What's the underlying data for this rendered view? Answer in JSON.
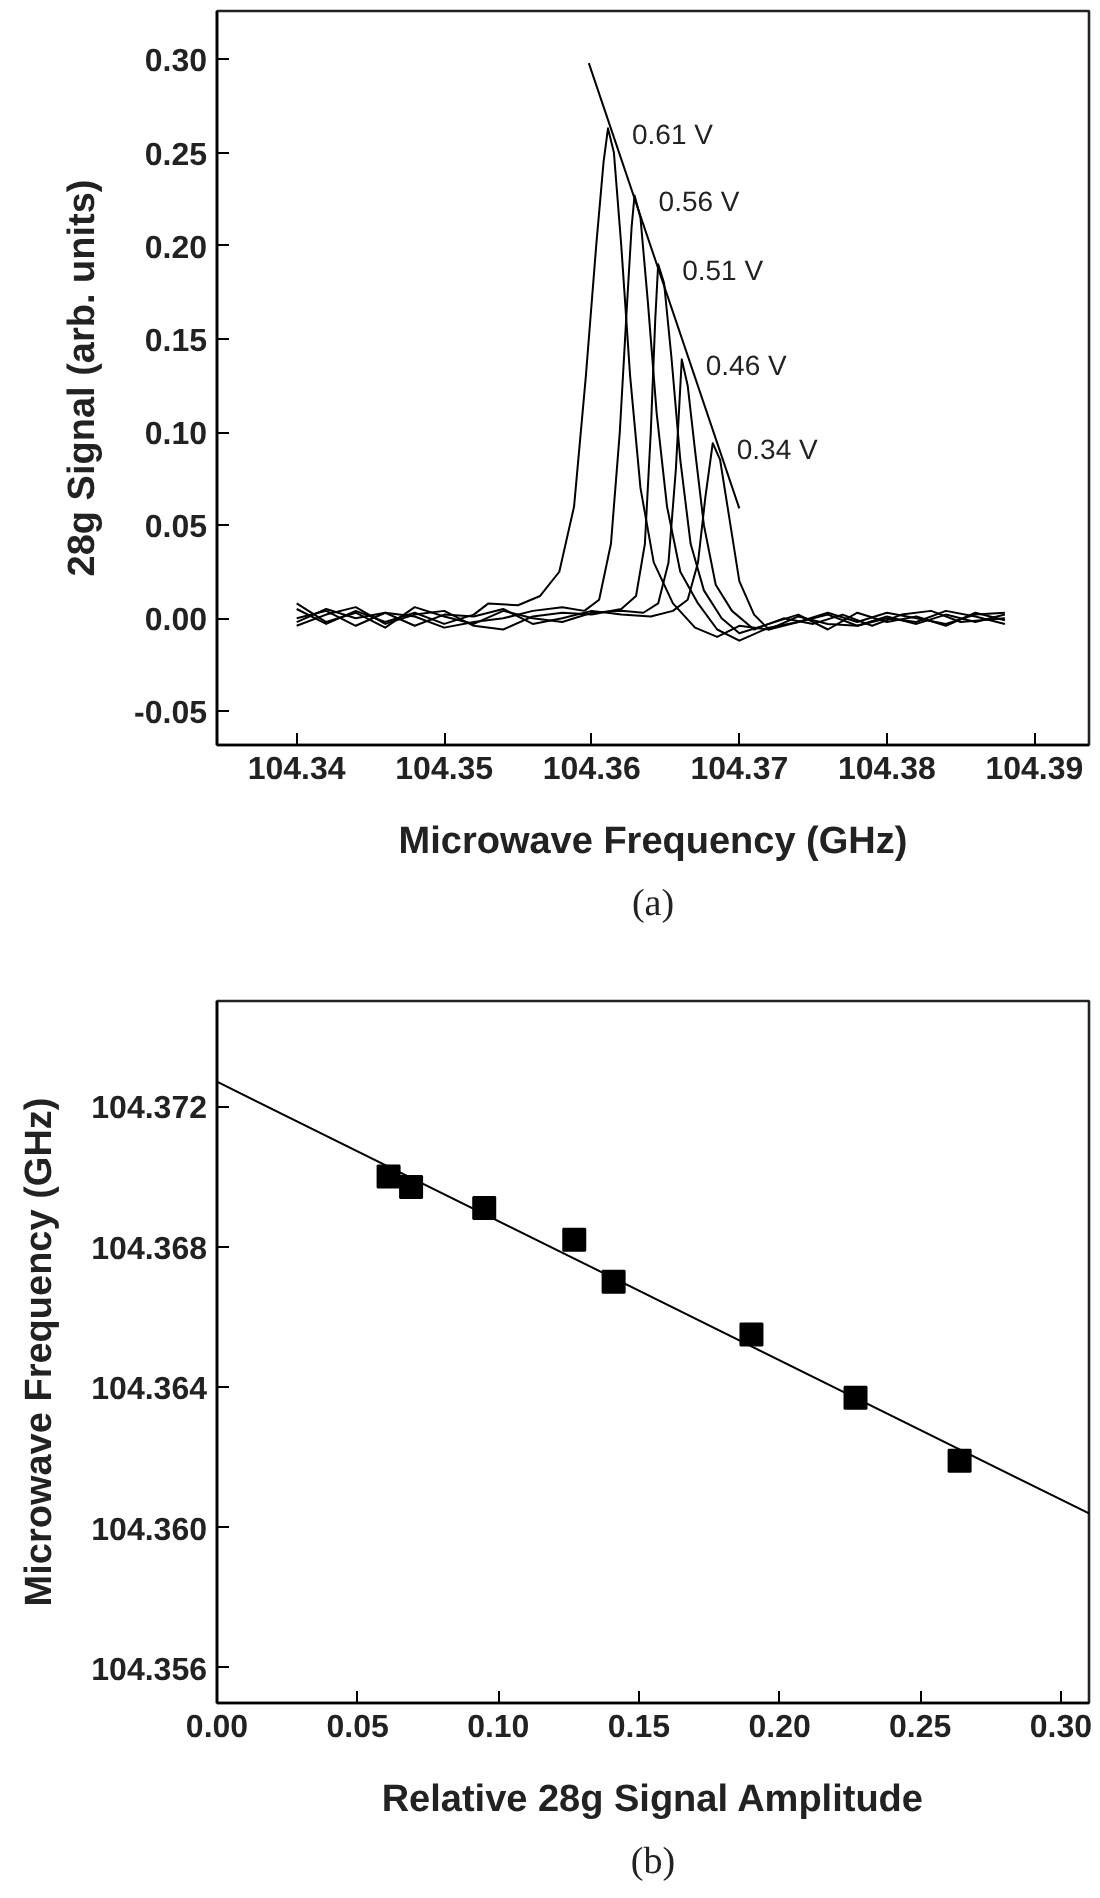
{
  "chart_data": [
    {
      "type": "line",
      "xlabel": "Microwave Frequency (GHz)",
      "ylabel": "28g Signal (arb. units)",
      "xlim": [
        104.3346,
        104.3937
      ],
      "ylim": [
        -0.068,
        0.326
      ],
      "xticks": [
        104.34,
        104.35,
        104.36,
        104.37,
        104.38,
        104.39
      ],
      "yticks": [
        {
          "value": -0.05,
          "label": "-0.05"
        },
        {
          "value": 0,
          "label": "0.00"
        },
        {
          "value": 0.05,
          "label": "0.05"
        },
        {
          "value": 0.1,
          "label": "0.10"
        },
        {
          "value": 0.15,
          "label": "0.15"
        },
        {
          "value": 0.2,
          "label": "0.20"
        },
        {
          "value": 0.25,
          "label": "0.25"
        },
        {
          "value": 0.3,
          "label": "0.30"
        }
      ],
      "series": [
        {
          "name": "0.61 V",
          "color": "#000000",
          "x": [
            104.34,
            104.342,
            104.344,
            104.346,
            104.348,
            104.35,
            104.352,
            104.353,
            104.355,
            104.3565,
            104.3578,
            104.3588,
            104.3596,
            104.3603,
            104.3608,
            104.3611,
            104.3615,
            104.362,
            104.3626,
            104.3633,
            104.3642,
            104.3655,
            104.367,
            104.3685,
            104.37,
            104.372,
            104.374,
            104.376,
            104.378,
            104.38,
            104.382,
            104.384,
            104.386,
            104.388
          ],
          "values": [
            0.005,
            -0.003,
            0.004,
            -0.002,
            0.003,
            -0.003,
            0.002,
            0.008,
            0.007,
            0.012,
            0.025,
            0.06,
            0.13,
            0.2,
            0.245,
            0.263,
            0.25,
            0.2,
            0.13,
            0.07,
            0.03,
            0.008,
            -0.005,
            -0.01,
            -0.004,
            -0.006,
            0.001,
            -0.003,
            -0.004,
            0.0,
            -0.002,
            0.004,
            0.001,
            -0.003
          ]
        },
        {
          "name": "0.56 V",
          "color": "#000000",
          "x": [
            104.34,
            104.342,
            104.344,
            104.346,
            104.348,
            104.35,
            104.352,
            104.354,
            104.356,
            104.358,
            104.3595,
            104.3605,
            104.3613,
            104.3619,
            104.3624,
            104.3627,
            104.3629,
            104.3633,
            104.3638,
            104.3644,
            104.3651,
            104.366,
            104.3672,
            104.3685,
            104.37,
            104.372,
            104.374,
            104.376,
            104.378,
            104.38,
            104.382,
            104.384,
            104.386,
            104.388
          ],
          "values": [
            0.0,
            0.004,
            -0.004,
            0.003,
            0.001,
            -0.005,
            -0.002,
            0.0,
            0.004,
            0.006,
            0.004,
            0.01,
            0.04,
            0.1,
            0.17,
            0.21,
            0.227,
            0.215,
            0.17,
            0.11,
            0.06,
            0.025,
            0.008,
            -0.006,
            -0.012,
            -0.005,
            -0.002,
            0.002,
            -0.004,
            0.001,
            -0.003,
            0.002,
            -0.002,
            0.002
          ]
        },
        {
          "name": "0.51 V",
          "color": "#000000",
          "x": [
            104.34,
            104.342,
            104.344,
            104.346,
            104.348,
            104.35,
            104.352,
            104.354,
            104.356,
            104.358,
            104.36,
            104.362,
            104.363,
            104.3636,
            104.364,
            104.3643,
            104.3645,
            104.3649,
            104.3654,
            104.366,
            104.3667,
            104.3676,
            104.3688,
            104.37,
            104.372,
            104.374,
            104.376,
            104.378,
            104.38,
            104.382,
            104.384,
            104.386,
            104.388
          ],
          "values": [
            -0.004,
            0.002,
            0.006,
            -0.003,
            0.002,
            0.004,
            -0.004,
            -0.006,
            0.001,
            0.003,
            0.002,
            0.005,
            0.012,
            0.04,
            0.1,
            0.16,
            0.19,
            0.18,
            0.14,
            0.085,
            0.04,
            0.015,
            0.0,
            -0.008,
            -0.003,
            0.002,
            -0.006,
            0.003,
            -0.002,
            0.001,
            -0.004,
            0.003,
            -0.001
          ]
        },
        {
          "name": "0.46 V",
          "color": "#000000",
          "x": [
            104.34,
            104.342,
            104.344,
            104.346,
            104.348,
            104.35,
            104.352,
            104.354,
            104.356,
            104.358,
            104.36,
            104.362,
            104.3635,
            104.3645,
            104.3652,
            104.3657,
            104.3661,
            104.3665,
            104.367,
            104.3676,
            104.3684,
            104.3695,
            104.371,
            104.373,
            104.375,
            104.377,
            104.379,
            104.381,
            104.383,
            104.385,
            104.388
          ],
          "values": [
            0.008,
            -0.002,
            0.003,
            -0.005,
            0.006,
            0.001,
            -0.003,
            0.004,
            0.0,
            -0.002,
            0.003,
            0.004,
            0.003,
            0.008,
            0.03,
            0.08,
            0.139,
            0.125,
            0.09,
            0.05,
            0.018,
            0.004,
            -0.006,
            0.0,
            -0.003,
            0.002,
            -0.004,
            0.002,
            0.004,
            -0.002,
            0.0
          ]
        },
        {
          "name": "0.34 V",
          "color": "#000000",
          "x": [
            104.34,
            104.342,
            104.344,
            104.346,
            104.348,
            104.35,
            104.352,
            104.354,
            104.356,
            104.358,
            104.36,
            104.362,
            104.364,
            104.3655,
            104.3665,
            104.3672,
            104.3677,
            104.3682,
            104.3687,
            104.3693,
            104.37,
            104.371,
            104.372,
            104.374,
            104.376,
            104.378,
            104.38,
            104.382,
            104.384,
            104.386,
            104.388
          ],
          "values": [
            -0.002,
            0.005,
            0.0,
            0.003,
            -0.004,
            0.002,
            0.001,
            0.005,
            -0.003,
            0.0,
            0.004,
            0.002,
            0.001,
            0.004,
            0.01,
            0.03,
            0.065,
            0.094,
            0.085,
            0.055,
            0.02,
            0.002,
            -0.006,
            -0.002,
            0.003,
            -0.002,
            0.003,
            0.0,
            -0.003,
            0.002,
            0.003
          ]
        },
        {
          "type": "line",
          "color": "#000000",
          "x": [
            104.3598,
            104.37
          ],
          "values": [
            0.298,
            0.059
          ]
        }
      ],
      "annotations": [
        "(a)"
      ]
    },
    {
      "type": "scatter",
      "xlabel": "Relative 28g Signal Amplitude",
      "ylabel": "Microwave Frequency (GHz)",
      "xlim": [
        0,
        0.31
      ],
      "ylim": [
        104.355,
        104.375
      ],
      "xticks": [
        {
          "value": 0,
          "label": "0.00"
        },
        {
          "value": 0.05,
          "label": "0.05"
        },
        {
          "value": 0.1,
          "label": "0.10"
        },
        {
          "value": 0.15,
          "label": "0.15"
        },
        {
          "value": 0.2,
          "label": "0.20"
        },
        {
          "value": 0.25,
          "label": "0.25"
        },
        {
          "value": 0.3,
          "label": "0.30"
        }
      ],
      "yticks": [
        104.356,
        {
          "value": 104.36,
          "label": "104.360"
        },
        104.364,
        104.368,
        104.372
      ],
      "series": [
        {
          "marker": "square",
          "color": "#000000",
          "x": [
            0.061,
            0.069,
            0.095,
            0.127,
            0.141,
            0.19,
            0.227,
            0.264
          ],
          "values": [
            104.37,
            104.3697,
            104.3691,
            104.3682,
            104.367,
            104.3655,
            104.3637,
            104.3619
          ]
        },
        {
          "type": "line",
          "color": "#000000",
          "x": [
            0,
            0.31
          ],
          "values": [
            104.3727,
            104.3604
          ]
        }
      ],
      "annotations": [
        "(b)"
      ]
    }
  ]
}
